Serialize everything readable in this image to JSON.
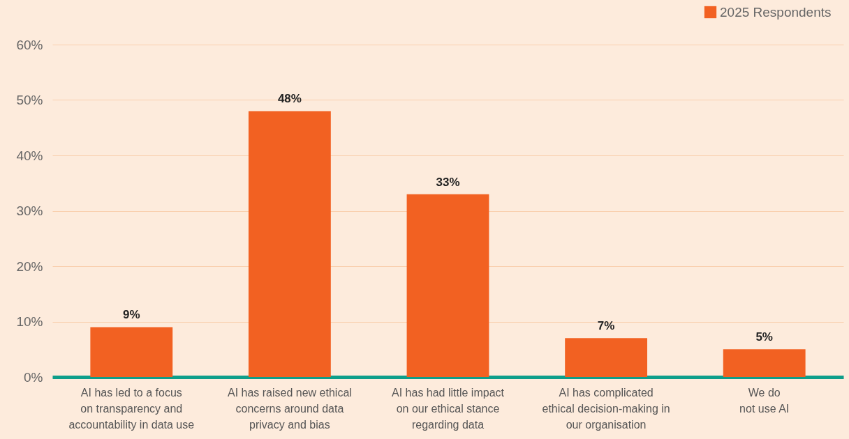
{
  "chart_data": {
    "type": "bar",
    "categories": [
      "AI has led to a focus\non transparency and\naccountability in data use",
      "AI has raised new ethical\nconcerns around data\nprivacy and bias",
      "AI has had little impact\non our ethical stance\nregarding data",
      "AI has complicated\nethical decision-making in\nour organisation",
      "We do\nnot use AI"
    ],
    "series": [
      {
        "name": "2025 Respondents",
        "color": "#f26122",
        "values": [
          9,
          48,
          33,
          7,
          5
        ],
        "value_labels": [
          "9%",
          "48%",
          "33%",
          "7%",
          "5%"
        ]
      }
    ],
    "ylim": [
      0,
      60
    ],
    "yticks": [
      {
        "value": 0,
        "label": "0%"
      },
      {
        "value": 10,
        "label": "10%"
      },
      {
        "value": 20,
        "label": "20%"
      },
      {
        "value": 30,
        "label": "30%"
      },
      {
        "value": 40,
        "label": "40%"
      },
      {
        "value": 50,
        "label": "50%"
      },
      {
        "value": 60,
        "label": "60%"
      }
    ],
    "grid": "y",
    "legend": "top right"
  }
}
